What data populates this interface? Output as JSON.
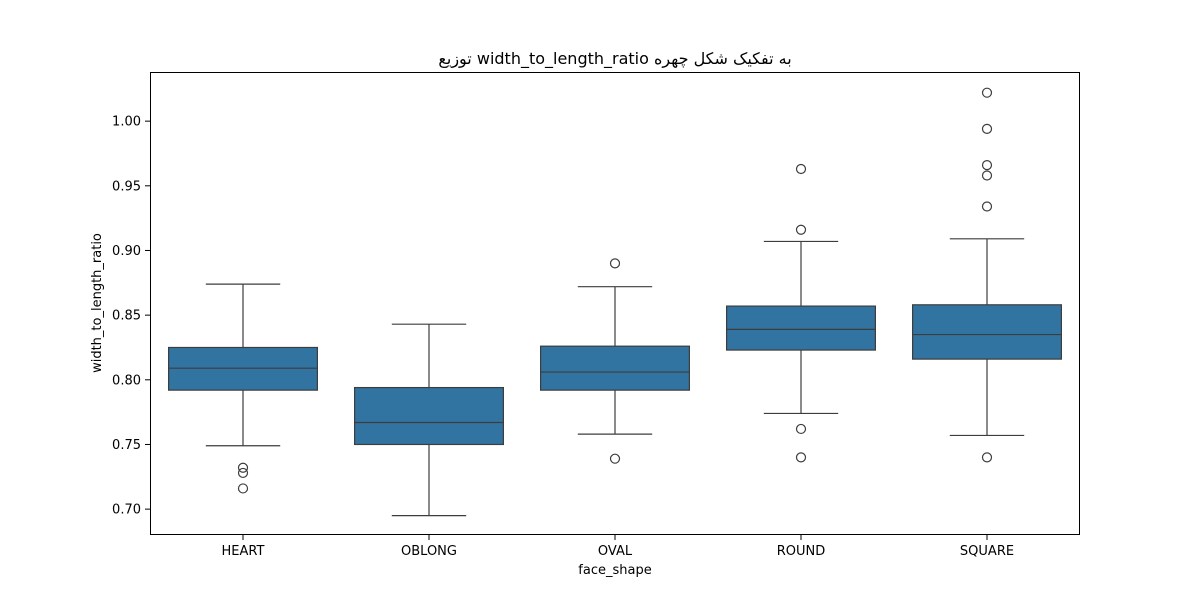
{
  "chart_data": {
    "type": "box",
    "title": "توزیع width_to_length_ratio به تفکیک شکل چهره",
    "xlabel": "face_shape",
    "ylabel": "width_to_length_ratio",
    "ylim": [
      0.68,
      1.038
    ],
    "yticks": [
      0.7,
      0.75,
      0.8,
      0.85,
      0.9,
      0.95,
      1.0
    ],
    "ytick_labels": [
      "0.70",
      "0.75",
      "0.80",
      "0.85",
      "0.90",
      "0.95",
      "1.00"
    ],
    "grid": false,
    "box_color": "#3274a1",
    "line_color": "#3d3d3d",
    "categories": [
      "HEART",
      "OBLONG",
      "OVAL",
      "ROUND",
      "SQUARE"
    ],
    "boxes": [
      {
        "category": "HEART",
        "whisker_low": 0.749,
        "q1": 0.792,
        "median": 0.809,
        "q3": 0.825,
        "whisker_high": 0.874,
        "outliers": [
          0.732,
          0.728,
          0.716
        ]
      },
      {
        "category": "OBLONG",
        "whisker_low": 0.695,
        "q1": 0.75,
        "median": 0.767,
        "q3": 0.794,
        "whisker_high": 0.843,
        "outliers": []
      },
      {
        "category": "OVAL",
        "whisker_low": 0.758,
        "q1": 0.792,
        "median": 0.806,
        "q3": 0.826,
        "whisker_high": 0.872,
        "outliers": [
          0.89,
          0.739
        ]
      },
      {
        "category": "ROUND",
        "whisker_low": 0.774,
        "q1": 0.823,
        "median": 0.839,
        "q3": 0.857,
        "whisker_high": 0.907,
        "outliers": [
          0.963,
          0.916,
          0.762,
          0.74
        ]
      },
      {
        "category": "SQUARE",
        "whisker_low": 0.757,
        "q1": 0.816,
        "median": 0.835,
        "q3": 0.858,
        "whisker_high": 0.909,
        "outliers": [
          1.022,
          0.994,
          0.966,
          0.958,
          0.934,
          0.74
        ]
      }
    ]
  }
}
